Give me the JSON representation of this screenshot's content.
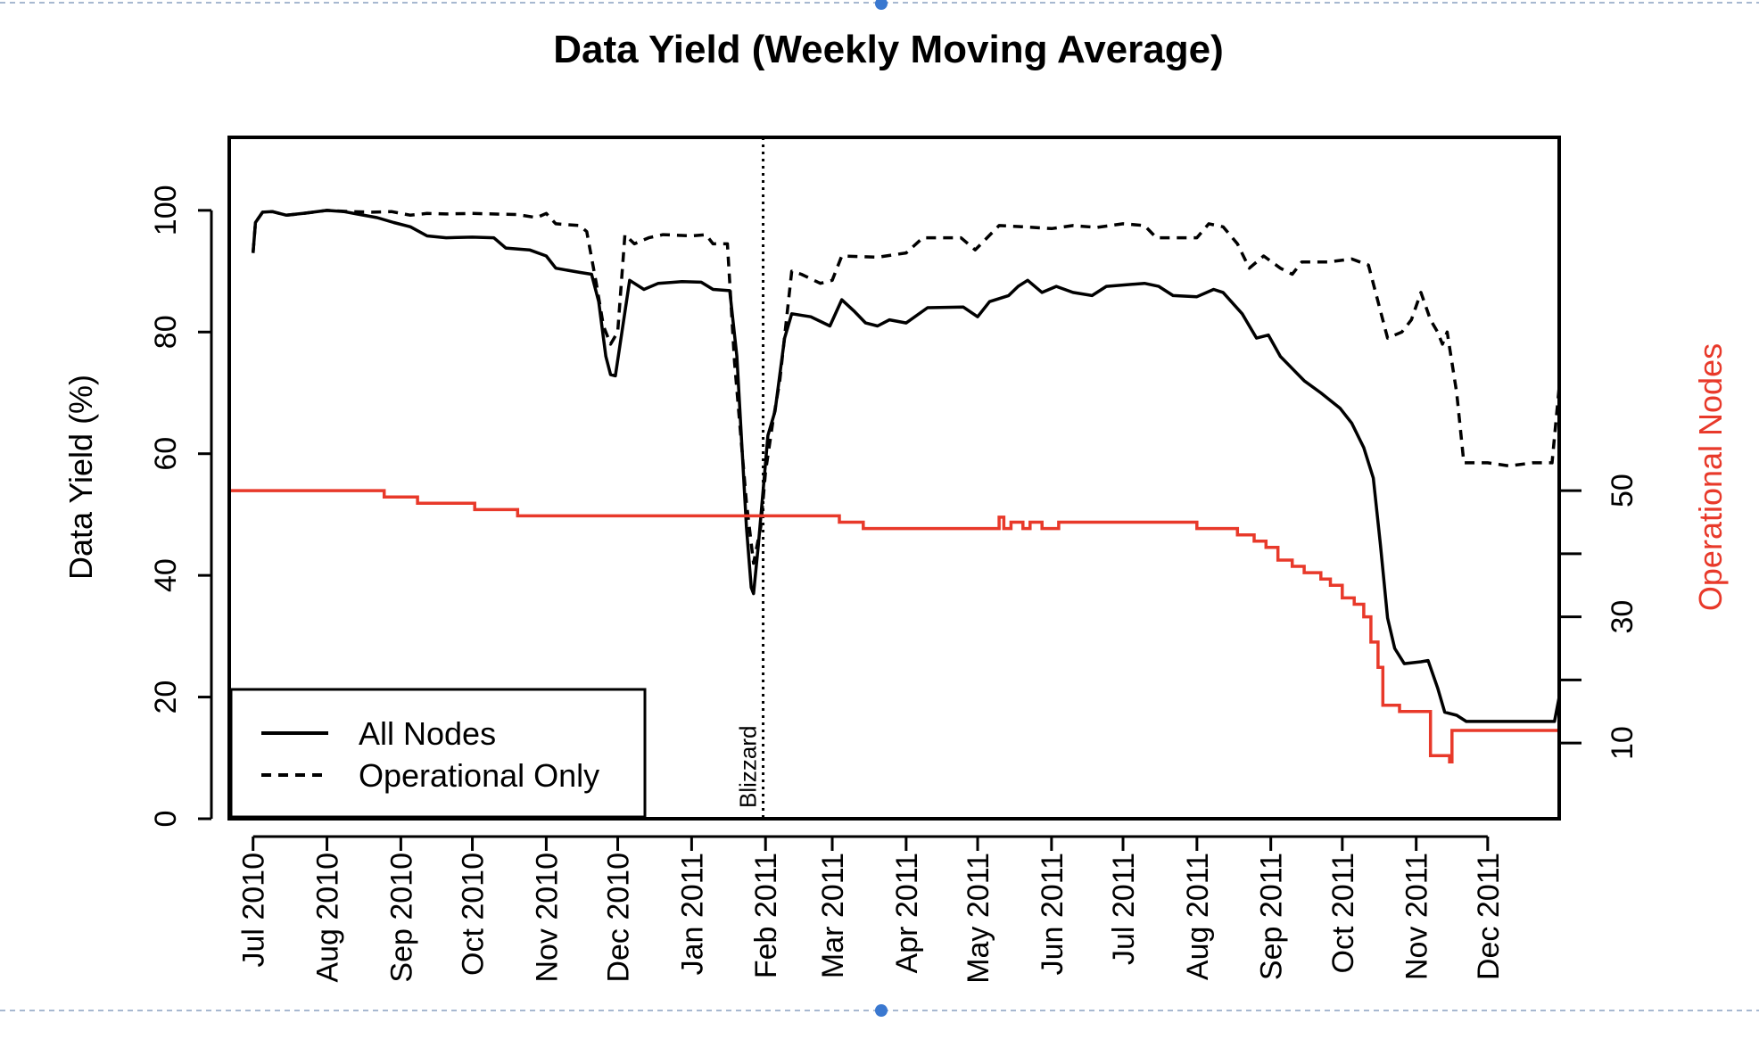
{
  "chart_data": {
    "type": "line",
    "title": "Data Yield (Weekly Moving Average)",
    "ylabel": "Data Yield (%)",
    "y2label": "Operational Nodes",
    "ylim": [
      0,
      112
    ],
    "yticks": [
      0,
      20,
      40,
      60,
      80,
      100
    ],
    "y2lim": [
      -2,
      106
    ],
    "y2ticks": [
      10,
      30,
      50
    ],
    "y2minor": [
      20,
      40
    ],
    "xlim": [
      "2010-06-21",
      "2011-12-31"
    ],
    "xticks": [
      {
        "date": "2010-07-01",
        "label": "Jul 2010"
      },
      {
        "date": "2010-08-01",
        "label": "Aug 2010"
      },
      {
        "date": "2010-09-01",
        "label": "Sep 2010"
      },
      {
        "date": "2010-10-01",
        "label": "Oct 2010"
      },
      {
        "date": "2010-11-01",
        "label": "Nov 2010"
      },
      {
        "date": "2010-12-01",
        "label": "Dec 2010"
      },
      {
        "date": "2011-01-01",
        "label": "Jan 2011"
      },
      {
        "date": "2011-02-01",
        "label": "Feb 2011"
      },
      {
        "date": "2011-03-01",
        "label": "Mar 2011"
      },
      {
        "date": "2011-04-01",
        "label": "Apr 2011"
      },
      {
        "date": "2011-05-01",
        "label": "May 2011"
      },
      {
        "date": "2011-06-01",
        "label": "Jun 2011"
      },
      {
        "date": "2011-07-01",
        "label": "Jul 2011"
      },
      {
        "date": "2011-08-01",
        "label": "Aug 2011"
      },
      {
        "date": "2011-09-01",
        "label": "Sep 2011"
      },
      {
        "date": "2011-10-01",
        "label": "Oct 2011"
      },
      {
        "date": "2011-11-01",
        "label": "Nov 2011"
      },
      {
        "date": "2011-12-01",
        "label": "Dec 2011"
      }
    ],
    "annotation": {
      "date": "2011-01-31",
      "label": "Blizzard"
    },
    "legend": {
      "position": "bottom-left"
    },
    "grid": false,
    "colors": {
      "all_nodes": "#000000",
      "operational_only": "#000000",
      "nodes": "#e8392a",
      "guide": "#8aa0c0",
      "handle": "#3a78d0"
    },
    "series": [
      {
        "name": "All Nodes",
        "axis": "left",
        "style": "solid",
        "points": [
          [
            "2010-07-01",
            93
          ],
          [
            "2010-07-02",
            98
          ],
          [
            "2010-07-05",
            99.7
          ],
          [
            "2010-07-09",
            99.8
          ],
          [
            "2010-07-15",
            99.2
          ],
          [
            "2010-07-22",
            99.5
          ],
          [
            "2010-08-01",
            100
          ],
          [
            "2010-08-08",
            99.8
          ],
          [
            "2010-08-15",
            99.3
          ],
          [
            "2010-08-22",
            98.8
          ],
          [
            "2010-08-29",
            98
          ],
          [
            "2010-09-05",
            97.3
          ],
          [
            "2010-09-12",
            95.8
          ],
          [
            "2010-09-20",
            95.5
          ],
          [
            "2010-10-01",
            95.6
          ],
          [
            "2010-10-10",
            95.5
          ],
          [
            "2010-10-15",
            93.8
          ],
          [
            "2010-10-25",
            93.5
          ],
          [
            "2010-11-01",
            92.5
          ],
          [
            "2010-11-05",
            90.5
          ],
          [
            "2010-11-15",
            89.8
          ],
          [
            "2010-11-20",
            89.5
          ],
          [
            "2010-11-23",
            85
          ],
          [
            "2010-11-26",
            76
          ],
          [
            "2010-11-28",
            73
          ],
          [
            "2010-11-30",
            72.8
          ],
          [
            "2010-12-02",
            78
          ],
          [
            "2010-12-06",
            88.5
          ],
          [
            "2010-12-12",
            87
          ],
          [
            "2010-12-18",
            88
          ],
          [
            "2010-12-28",
            88.3
          ],
          [
            "2011-01-05",
            88.2
          ],
          [
            "2011-01-10",
            87
          ],
          [
            "2011-01-17",
            86.8
          ],
          [
            "2011-01-20",
            76
          ],
          [
            "2011-01-24",
            48
          ],
          [
            "2011-01-26",
            38
          ],
          [
            "2011-01-27",
            37
          ],
          [
            "2011-01-29",
            45
          ],
          [
            "2011-02-02",
            63
          ],
          [
            "2011-02-05",
            67
          ],
          [
            "2011-02-09",
            79
          ],
          [
            "2011-02-12",
            83
          ],
          [
            "2011-02-20",
            82.5
          ],
          [
            "2011-02-28",
            81
          ],
          [
            "2011-03-05",
            85.3
          ],
          [
            "2011-03-10",
            83.5
          ],
          [
            "2011-03-15",
            81.5
          ],
          [
            "2011-03-20",
            81
          ],
          [
            "2011-03-25",
            82
          ],
          [
            "2011-04-01",
            81.5
          ],
          [
            "2011-04-10",
            84
          ],
          [
            "2011-04-25",
            84.1
          ],
          [
            "2011-05-01",
            82.5
          ],
          [
            "2011-05-06",
            85
          ],
          [
            "2011-05-14",
            86
          ],
          [
            "2011-05-18",
            87.5
          ],
          [
            "2011-05-22",
            88.5
          ],
          [
            "2011-05-28",
            86.5
          ],
          [
            "2011-06-03",
            87.5
          ],
          [
            "2011-06-10",
            86.5
          ],
          [
            "2011-06-18",
            86
          ],
          [
            "2011-06-24",
            87.5
          ],
          [
            "2011-07-10",
            88
          ],
          [
            "2011-07-16",
            87.5
          ],
          [
            "2011-07-22",
            86
          ],
          [
            "2011-08-01",
            85.8
          ],
          [
            "2011-08-08",
            87
          ],
          [
            "2011-08-12",
            86.5
          ],
          [
            "2011-08-20",
            83
          ],
          [
            "2011-08-26",
            79
          ],
          [
            "2011-08-31",
            79.5
          ],
          [
            "2011-09-05",
            76
          ],
          [
            "2011-09-10",
            74
          ],
          [
            "2011-09-15",
            72
          ],
          [
            "2011-09-22",
            70
          ],
          [
            "2011-09-30",
            67.5
          ],
          [
            "2011-10-05",
            65
          ],
          [
            "2011-10-10",
            61
          ],
          [
            "2011-10-14",
            56
          ],
          [
            "2011-10-17",
            45
          ],
          [
            "2011-10-20",
            33
          ],
          [
            "2011-10-23",
            28
          ],
          [
            "2011-10-27",
            25.5
          ],
          [
            "2011-11-03",
            25.8
          ],
          [
            "2011-11-06",
            26
          ],
          [
            "2011-11-10",
            21.5
          ],
          [
            "2011-11-13",
            17.5
          ],
          [
            "2011-11-18",
            17
          ],
          [
            "2011-11-22",
            16
          ],
          [
            "2011-12-10",
            16
          ],
          [
            "2011-12-20",
            16
          ],
          [
            "2011-12-29",
            16
          ],
          [
            "2011-12-31",
            20
          ]
        ]
      },
      {
        "name": "Operational Only",
        "axis": "left",
        "style": "dashed",
        "points": [
          [
            "2010-07-01",
            93
          ],
          [
            "2010-07-02",
            98
          ],
          [
            "2010-07-05",
            99.7
          ],
          [
            "2010-07-09",
            99.8
          ],
          [
            "2010-07-15",
            99.2
          ],
          [
            "2010-07-22",
            99.5
          ],
          [
            "2010-08-01",
            100
          ],
          [
            "2010-08-10",
            99.8
          ],
          [
            "2010-08-20",
            99.7
          ],
          [
            "2010-08-28",
            99.8
          ],
          [
            "2010-09-05",
            99.2
          ],
          [
            "2010-09-12",
            99.5
          ],
          [
            "2010-09-20",
            99.4
          ],
          [
            "2010-10-01",
            99.5
          ],
          [
            "2010-10-20",
            99.3
          ],
          [
            "2010-10-28",
            98.8
          ],
          [
            "2010-11-01",
            99.5
          ],
          [
            "2010-11-05",
            97.8
          ],
          [
            "2010-11-15",
            97.5
          ],
          [
            "2010-11-18",
            96.5
          ],
          [
            "2010-11-22",
            88
          ],
          [
            "2010-11-25",
            81
          ],
          [
            "2010-11-28",
            78
          ],
          [
            "2010-12-01",
            80
          ],
          [
            "2010-12-04",
            96
          ],
          [
            "2010-12-08",
            94.5
          ],
          [
            "2010-12-14",
            95.5
          ],
          [
            "2010-12-20",
            96
          ],
          [
            "2011-01-01",
            95.8
          ],
          [
            "2011-01-07",
            96
          ],
          [
            "2011-01-10",
            94.5
          ],
          [
            "2011-01-16",
            94.5
          ],
          [
            "2011-01-19",
            75
          ],
          [
            "2011-01-24",
            52
          ],
          [
            "2011-01-27",
            42
          ],
          [
            "2011-01-30",
            48
          ],
          [
            "2011-02-01",
            57
          ],
          [
            "2011-02-04",
            65
          ],
          [
            "2011-02-07",
            72
          ],
          [
            "2011-02-12",
            90
          ],
          [
            "2011-02-16",
            89.5
          ],
          [
            "2011-02-24",
            88
          ],
          [
            "2011-03-01",
            88.5
          ],
          [
            "2011-03-05",
            92.5
          ],
          [
            "2011-03-20",
            92.3
          ],
          [
            "2011-04-01",
            93
          ],
          [
            "2011-04-08",
            95.5
          ],
          [
            "2011-04-24",
            95.5
          ],
          [
            "2011-04-30",
            93.5
          ],
          [
            "2011-05-10",
            97.5
          ],
          [
            "2011-05-20",
            97.3
          ],
          [
            "2011-06-01",
            97
          ],
          [
            "2011-06-10",
            97.5
          ],
          [
            "2011-06-20",
            97.2
          ],
          [
            "2011-07-01",
            97.8
          ],
          [
            "2011-07-10",
            97.5
          ],
          [
            "2011-07-15",
            95.5
          ],
          [
            "2011-07-25",
            95.5
          ],
          [
            "2011-08-01",
            95.5
          ],
          [
            "2011-08-06",
            97.8
          ],
          [
            "2011-08-12",
            97.3
          ],
          [
            "2011-08-18",
            94.5
          ],
          [
            "2011-08-23",
            90.5
          ],
          [
            "2011-08-29",
            92.5
          ],
          [
            "2011-09-05",
            90.5
          ],
          [
            "2011-09-10",
            89.5
          ],
          [
            "2011-09-14",
            91.5
          ],
          [
            "2011-09-25",
            91.5
          ],
          [
            "2011-10-05",
            92
          ],
          [
            "2011-10-12",
            91
          ],
          [
            "2011-10-16",
            85
          ],
          [
            "2011-10-20",
            79
          ],
          [
            "2011-10-26",
            80
          ],
          [
            "2011-10-30",
            82
          ],
          [
            "2011-11-03",
            86.5
          ],
          [
            "2011-11-07",
            82
          ],
          [
            "2011-11-10",
            80
          ],
          [
            "2011-11-12",
            78
          ],
          [
            "2011-11-14",
            80
          ],
          [
            "2011-11-18",
            70
          ],
          [
            "2011-11-21",
            58.5
          ],
          [
            "2011-12-01",
            58.5
          ],
          [
            "2011-12-10",
            58
          ],
          [
            "2011-12-20",
            58.5
          ],
          [
            "2011-12-28",
            58.5
          ],
          [
            "2011-12-31",
            71
          ]
        ]
      },
      {
        "name": "Operational Nodes",
        "axis": "right",
        "style": "step",
        "points": [
          [
            "2010-06-21",
            50
          ],
          [
            "2010-08-25",
            49
          ],
          [
            "2010-09-08",
            48
          ],
          [
            "2010-10-02",
            47
          ],
          [
            "2010-10-20",
            46
          ],
          [
            "2011-03-04",
            45
          ],
          [
            "2011-03-14",
            44
          ],
          [
            "2011-05-10",
            45.8
          ],
          [
            "2011-05-12",
            44
          ],
          [
            "2011-05-15",
            45
          ],
          [
            "2011-05-17",
            45
          ],
          [
            "2011-05-20",
            44
          ],
          [
            "2011-05-23",
            45
          ],
          [
            "2011-05-28",
            44
          ],
          [
            "2011-06-04",
            45
          ],
          [
            "2011-08-01",
            44
          ],
          [
            "2011-08-18",
            43
          ],
          [
            "2011-08-25",
            42
          ],
          [
            "2011-08-30",
            41
          ],
          [
            "2011-09-04",
            39
          ],
          [
            "2011-09-10",
            38
          ],
          [
            "2011-09-15",
            37
          ],
          [
            "2011-09-22",
            36
          ],
          [
            "2011-09-26",
            35
          ],
          [
            "2011-10-01",
            33
          ],
          [
            "2011-10-06",
            32
          ],
          [
            "2011-10-10",
            30
          ],
          [
            "2011-10-13",
            26
          ],
          [
            "2011-10-16",
            22
          ],
          [
            "2011-10-18",
            16
          ],
          [
            "2011-10-25",
            15
          ],
          [
            "2011-11-07",
            8
          ],
          [
            "2011-11-15",
            7
          ],
          [
            "2011-11-16",
            12
          ],
          [
            "2011-12-31",
            12
          ]
        ]
      }
    ]
  }
}
